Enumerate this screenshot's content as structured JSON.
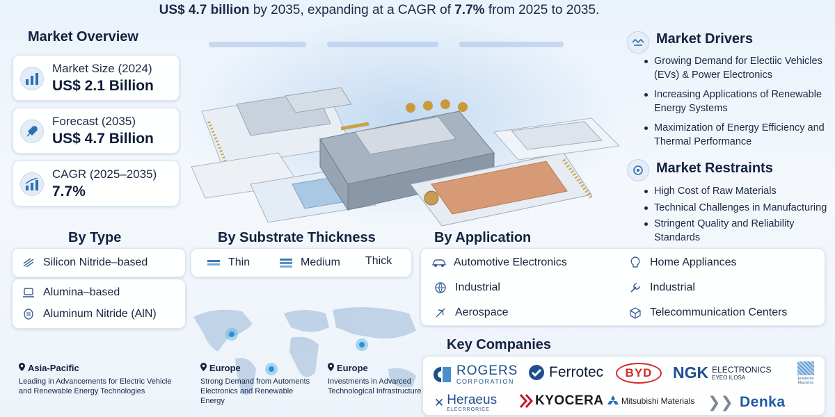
{
  "headline": {
    "part1": "US$ 4.7 billion",
    "part2": " by 2035, expanding at a CAGR of ",
    "part3": "7.7%",
    "part4": " from 2025 to 2035."
  },
  "market_overview": {
    "title": "Market Overview",
    "cards": [
      {
        "label": "Market Size (2024)",
        "value": "US$ 2.1 Billion",
        "icon": "bar-chart-icon"
      },
      {
        "label": "Forecast (2035)",
        "value": "US$ 4.7 Billion",
        "icon": "rocket-icon"
      },
      {
        "label": "CAGR (2025–2035)",
        "value": "7.7%",
        "icon": "growth-chart-icon"
      }
    ]
  },
  "market_drivers": {
    "title": "Market Drivers",
    "items": [
      "Growing Demand for Electiic Vehicles (EVs) & Power Electronics",
      "Increasing Applications of Renewable Energy Systems",
      "Maximization of Energy Efficiency and Thermal Performance"
    ]
  },
  "market_restraints": {
    "title": "Market Restraints",
    "items": [
      "High Cost of Raw Materials",
      "Technical Challenges in Manufacturing",
      "Stringent Quality and Reliability Standards"
    ]
  },
  "by_type": {
    "title": "By Type",
    "items": [
      "Silicon Nitride–based",
      "Alumina–based",
      "Aluminum Nitride (AlN)"
    ]
  },
  "by_thickness": {
    "title": "By Substrate Thickness",
    "items": [
      "Thin",
      "Medium",
      "Thick"
    ]
  },
  "by_application": {
    "title": "By Application",
    "left": [
      "Automotive Electronics",
      "Industrial",
      "Aerospace"
    ],
    "right": [
      "Home Appliances",
      "Industrial",
      "Telecommunication Centers"
    ]
  },
  "regions": [
    {
      "name": "Asia-Pacific",
      "text": "Leading in Advancements for Electric Vehicle and Renewable Energy Technologies"
    },
    {
      "name": "Europe",
      "text": "Strong Demand from Automents Electronics and Renewable Energy"
    },
    {
      "name": "Europe",
      "text": "Investments in Advarced Technological Infrastructure"
    }
  ],
  "key_companies": {
    "title": "Key Companies",
    "logos": {
      "rogers": "ROGERS",
      "rogers_sub": "CORPORATION",
      "ferrotec": "Ferrotec",
      "byd": "BYD",
      "ngk": "NGK",
      "ngk_sub1": "ELECTRONICS",
      "ngk_sub2": "EYEO ILOSA",
      "emblem_text": "Eurotexon Marcterns",
      "heraeus": "Heraeus",
      "heraeus_sub": "ELECRRORICE",
      "kyocera": "KYOCERA",
      "mitsubishi": "Mitsubishi Materials",
      "denka": "Denka"
    }
  },
  "colors": {
    "accent": "#1f6fb5",
    "byd_red": "#d42a2a",
    "kyocera_red": "#c8102e",
    "denka_blue": "#1c5aa6",
    "navy": "#14213d"
  }
}
